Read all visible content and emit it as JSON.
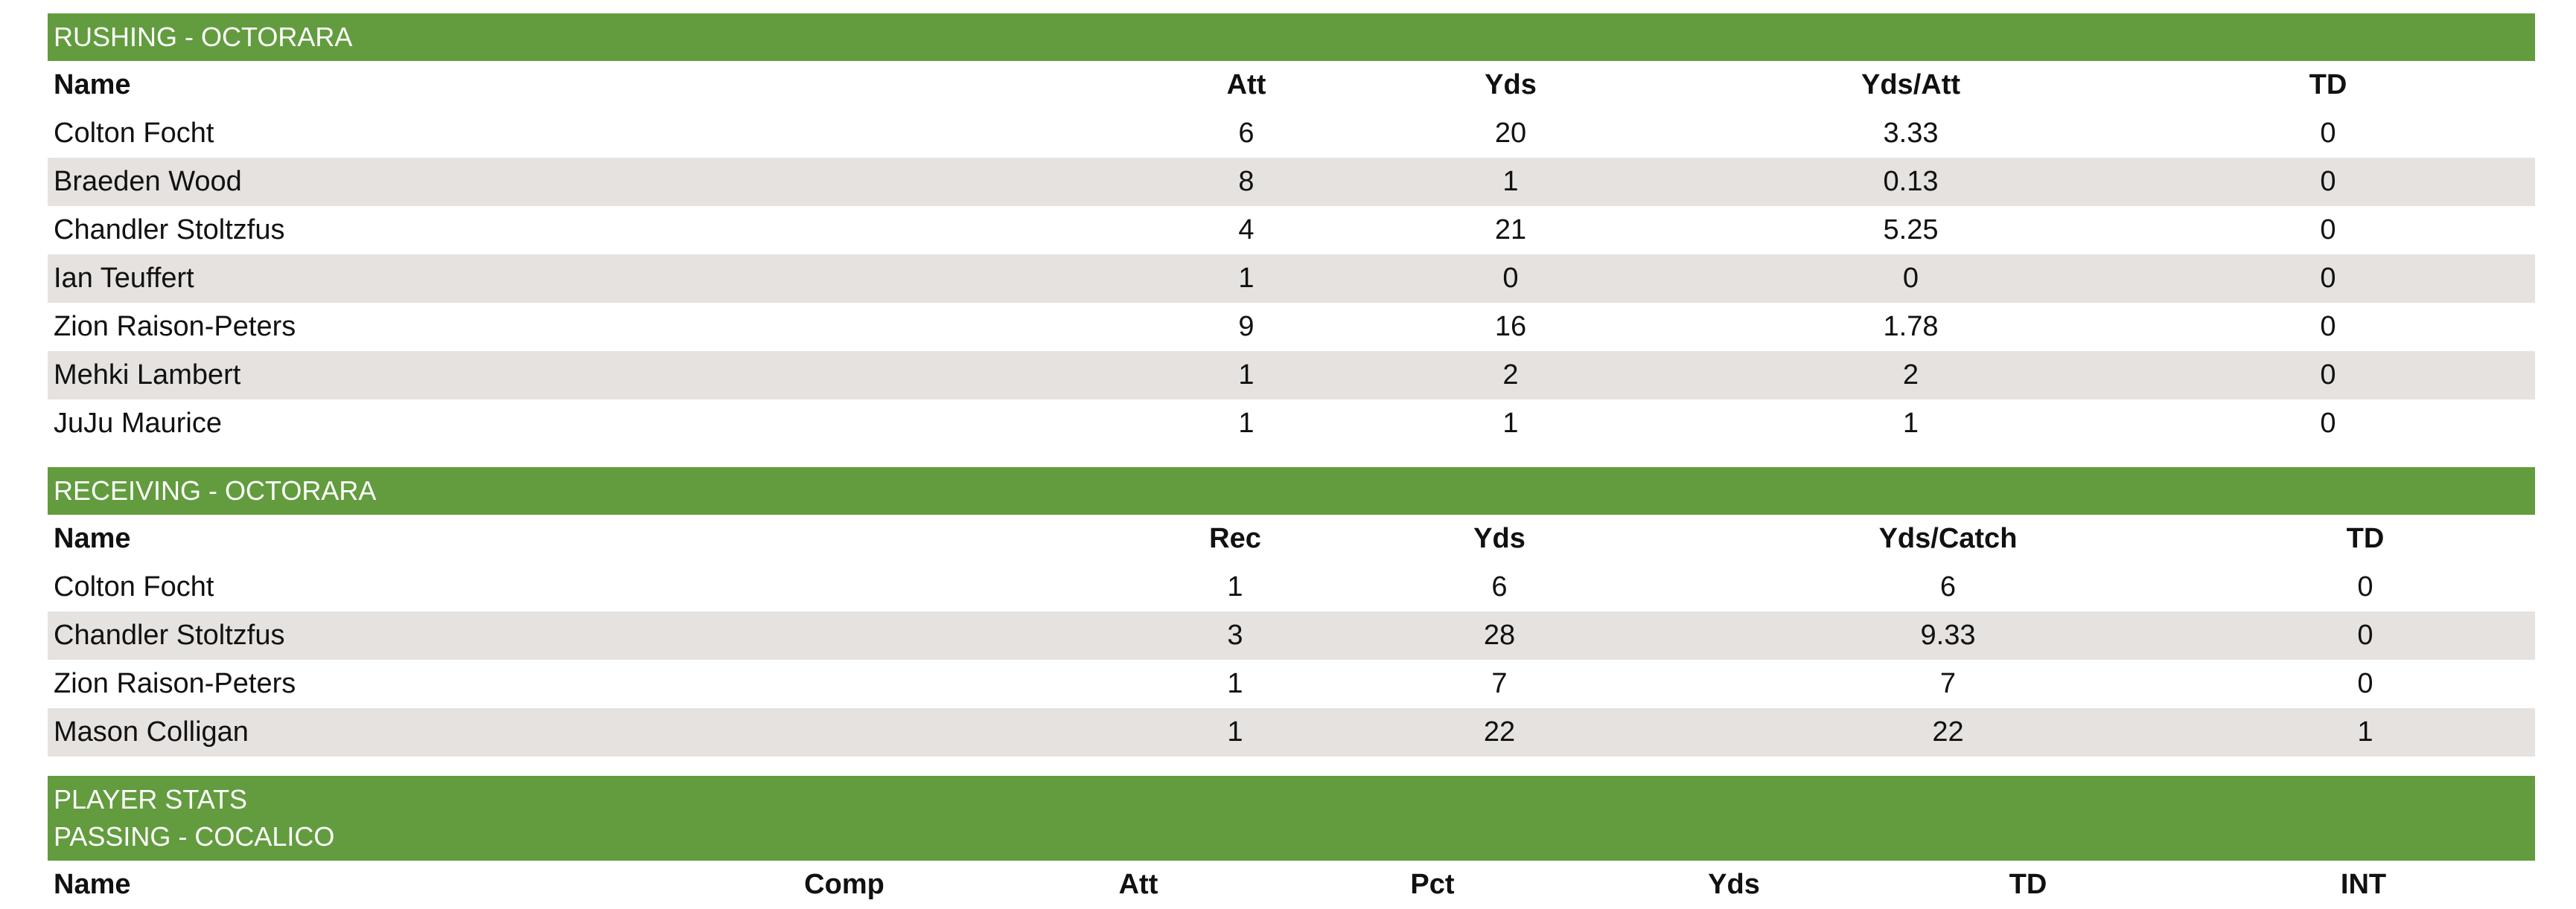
{
  "rushing": {
    "title": "RUSHING - OCTORARA",
    "headers": [
      "Name",
      "Att",
      "Yds",
      "Yds/Att",
      "TD"
    ],
    "rows": [
      [
        "Colton Focht",
        "6",
        "20",
        "3.33",
        "0"
      ],
      [
        "Braeden Wood",
        "8",
        "1",
        "0.13",
        "0"
      ],
      [
        "Chandler Stoltzfus",
        "4",
        "21",
        "5.25",
        "0"
      ],
      [
        "Ian Teuffert",
        "1",
        "0",
        "0",
        "0"
      ],
      [
        "Zion Raison-Peters",
        "9",
        "16",
        "1.78",
        "0"
      ],
      [
        "Mehki Lambert",
        "1",
        "2",
        "2",
        "0"
      ],
      [
        "JuJu Maurice",
        "1",
        "1",
        "1",
        "0"
      ]
    ]
  },
  "receiving": {
    "title": "RECEIVING - OCTORARA",
    "headers": [
      "Name",
      "Rec",
      "Yds",
      "Yds/Catch",
      "TD"
    ],
    "rows": [
      [
        "Colton Focht",
        "1",
        "6",
        "6",
        "0"
      ],
      [
        "Chandler Stoltzfus",
        "3",
        "28",
        "9.33",
        "0"
      ],
      [
        "Zion Raison-Peters",
        "1",
        "7",
        "7",
        "0"
      ],
      [
        "Mason Colligan",
        "1",
        "22",
        "22",
        "1"
      ]
    ]
  },
  "passing": {
    "title_line1": "PLAYER STATS",
    "title_line2": "PASSING - COCALICO",
    "headers": [
      "Name",
      "Comp",
      "Att",
      "Pct",
      "Yds",
      "TD",
      "INT"
    ]
  },
  "colors": {
    "header_green": "#629c3e",
    "alt_row": "#e5e2e0"
  }
}
